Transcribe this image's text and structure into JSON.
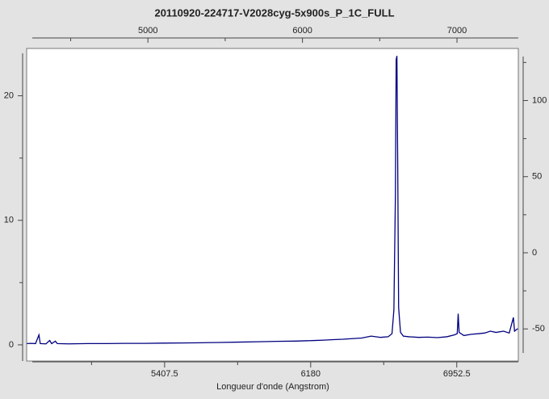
{
  "chart_data": {
    "type": "line",
    "title": "20110920-224717-V2028cyg-5x900s_P_1C_FULL",
    "xlabel": "Longueur d'onde (Angstrom)",
    "color": "#000080",
    "x": [
      4680,
      4700,
      4725,
      4743,
      4750,
      4780,
      4800,
      4810,
      4830,
      4840,
      4900,
      5000,
      5100,
      5200,
      5300,
      5400,
      5500,
      5600,
      5700,
      5800,
      5900,
      6000,
      6100,
      6200,
      6250,
      6300,
      6350,
      6400,
      6450,
      6500,
      6550,
      6590,
      6610,
      6620,
      6628,
      6632,
      6636,
      6640,
      6645,
      6655,
      6670,
      6700,
      6750,
      6800,
      6850,
      6900,
      6940,
      6955,
      6960,
      6965,
      6990,
      7030,
      7070,
      7100,
      7130,
      7160,
      7200,
      7230,
      7252,
      7258,
      7275
    ],
    "values": [
      0.1,
      0.12,
      0.1,
      0.8,
      0.1,
      0.08,
      0.35,
      0.1,
      0.3,
      0.1,
      0.08,
      0.1,
      0.1,
      0.12,
      0.12,
      0.14,
      0.15,
      0.17,
      0.19,
      0.22,
      0.25,
      0.28,
      0.3,
      0.35,
      0.38,
      0.42,
      0.45,
      0.5,
      0.55,
      0.7,
      0.6,
      0.65,
      0.9,
      2.8,
      12,
      22.9,
      23.2,
      15,
      3,
      1.0,
      0.7,
      0.65,
      0.6,
      0.62,
      0.58,
      0.65,
      0.8,
      0.9,
      2.5,
      1.0,
      0.75,
      0.85,
      0.9,
      0.95,
      1.1,
      1.0,
      1.1,
      0.95,
      2.2,
      1.1,
      1.3
    ],
    "xlim": [
      4678,
      7278
    ],
    "xticks": [
      5407.5,
      6180,
      6952.5
    ],
    "xminorticks": [
      5021.25,
      5793.75,
      6566.25
    ],
    "x2lim": [
      4215,
      7397
    ],
    "x2ticks": [
      5000,
      6000,
      7000
    ],
    "x2minorticks": [
      4500,
      5500,
      6500
    ],
    "ylim": [
      -1.3,
      23.8
    ],
    "yticks": [
      0,
      10,
      20
    ],
    "yminorticks": [
      5,
      15
    ],
    "y2lim": [
      -71.1,
      134.2
    ],
    "y2ticks": [
      -50,
      0,
      50,
      100
    ],
    "y2minorticks": [
      -25,
      25,
      75,
      125
    ]
  }
}
